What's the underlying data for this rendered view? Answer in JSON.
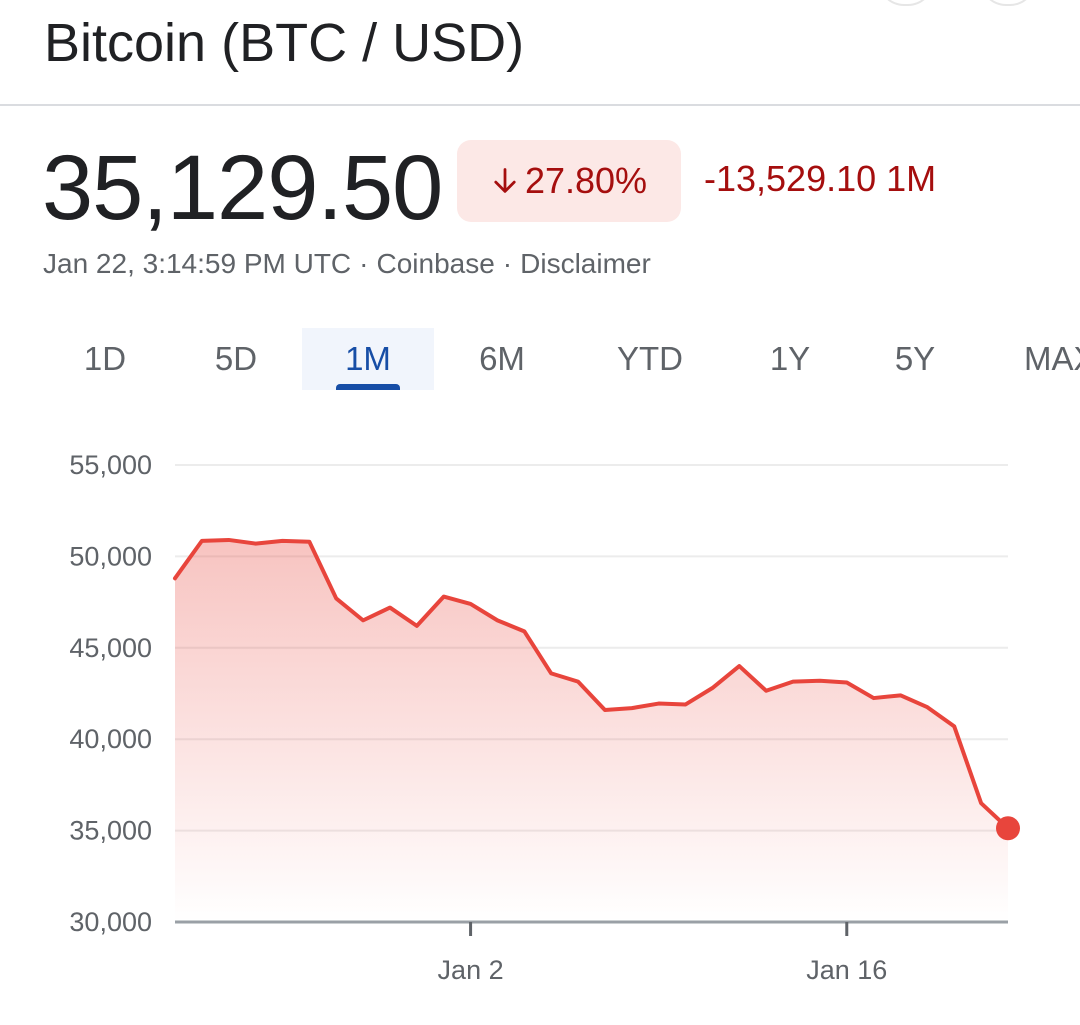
{
  "header": {
    "title": "Bitcoin (BTC / USD)"
  },
  "quote": {
    "price": "35,129.50",
    "percent_change": "27.80%",
    "direction": "down",
    "absolute_change": "-13,529.10 1M"
  },
  "meta": {
    "timestamp": "Jan 22, 3:14:59 PM UTC",
    "source": "Coinbase",
    "disclaimer": "Disclaimer",
    "separator": "·"
  },
  "tabs": [
    {
      "label": "1D",
      "selected": false
    },
    {
      "label": "5D",
      "selected": false
    },
    {
      "label": "1M",
      "selected": true
    },
    {
      "label": "6M",
      "selected": false
    },
    {
      "label": "YTD",
      "selected": false
    },
    {
      "label": "1Y",
      "selected": false
    },
    {
      "label": "5Y",
      "selected": false
    },
    {
      "label": "MAX",
      "selected": false
    }
  ],
  "colors": {
    "negative": "#a50e0e",
    "negative_bg": "#fce8e6",
    "line": "#e8453c",
    "tab_selected": "#174ea6"
  },
  "chart_data": {
    "type": "area",
    "ylim": [
      30000,
      55000
    ],
    "yticks": [
      "55,000",
      "50,000",
      "45,000",
      "40,000",
      "35,000",
      "30,000"
    ],
    "ytick_values": [
      55000,
      50000,
      45000,
      40000,
      35000,
      30000
    ],
    "xticks": [
      "Jan 2",
      "Jan 16"
    ],
    "xtick_positions": [
      11,
      25
    ],
    "x_max": 31,
    "grid": true,
    "values": [
      48800,
      50850,
      50900,
      50700,
      50850,
      50800,
      47700,
      46500,
      47200,
      46200,
      47800,
      47400,
      46500,
      45900,
      43600,
      43150,
      41600,
      41700,
      41950,
      41900,
      42800,
      44000,
      42650,
      43150,
      43200,
      43100,
      42250,
      42400,
      41750,
      40700,
      36500,
      35129.5
    ]
  }
}
